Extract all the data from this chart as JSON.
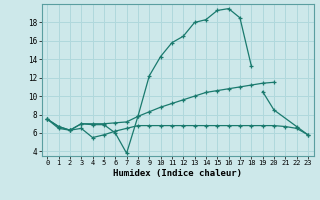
{
  "title": "",
  "xlabel": "Humidex (Indice chaleur)",
  "xlim": [
    -0.5,
    23.5
  ],
  "ylim": [
    3.5,
    20.0
  ],
  "xticks": [
    0,
    1,
    2,
    3,
    4,
    5,
    6,
    7,
    8,
    9,
    10,
    11,
    12,
    13,
    14,
    15,
    16,
    17,
    18,
    19,
    20,
    21,
    22,
    23
  ],
  "yticks": [
    4,
    6,
    8,
    10,
    12,
    14,
    16,
    18
  ],
  "bg_color": "#cde8ea",
  "line_color": "#1a7a6e",
  "grid_color": "#b0d8dc",
  "series": [
    {
      "x": [
        0,
        1,
        2,
        3,
        4,
        5,
        6,
        7,
        8,
        9,
        10,
        11,
        12,
        13,
        14,
        15,
        16,
        17,
        18
      ],
      "y": [
        7.5,
        6.7,
        6.3,
        7.0,
        6.9,
        6.9,
        6.0,
        3.8,
        7.8,
        12.2,
        14.3,
        15.8,
        16.5,
        18.0,
        18.3,
        19.3,
        19.5,
        18.5,
        13.3
      ]
    },
    {
      "x": [
        19,
        20,
        22,
        23
      ],
      "y": [
        10.5,
        8.5,
        6.7,
        5.8
      ]
    },
    {
      "x": [
        0,
        1,
        2,
        3,
        4,
        5,
        6,
        7,
        8,
        9,
        10,
        11,
        12,
        13,
        14,
        15,
        16,
        17,
        18,
        19,
        20
      ],
      "y": [
        7.5,
        6.7,
        6.3,
        7.0,
        7.0,
        7.0,
        7.1,
        7.2,
        7.8,
        8.3,
        8.8,
        9.2,
        9.6,
        10.0,
        10.4,
        10.6,
        10.8,
        11.0,
        11.2,
        11.4,
        11.5
      ]
    },
    {
      "x": [
        0,
        1,
        2,
        3,
        4,
        5,
        6,
        7,
        8,
        9,
        10,
        11,
        12,
        13,
        14,
        15,
        16,
        17,
        18,
        19,
        20,
        21,
        22,
        23
      ],
      "y": [
        7.5,
        6.5,
        6.3,
        6.5,
        5.5,
        5.8,
        6.2,
        6.5,
        6.8,
        6.8,
        6.8,
        6.8,
        6.8,
        6.8,
        6.8,
        6.8,
        6.8,
        6.8,
        6.8,
        6.8,
        6.8,
        6.7,
        6.5,
        5.8
      ]
    }
  ]
}
